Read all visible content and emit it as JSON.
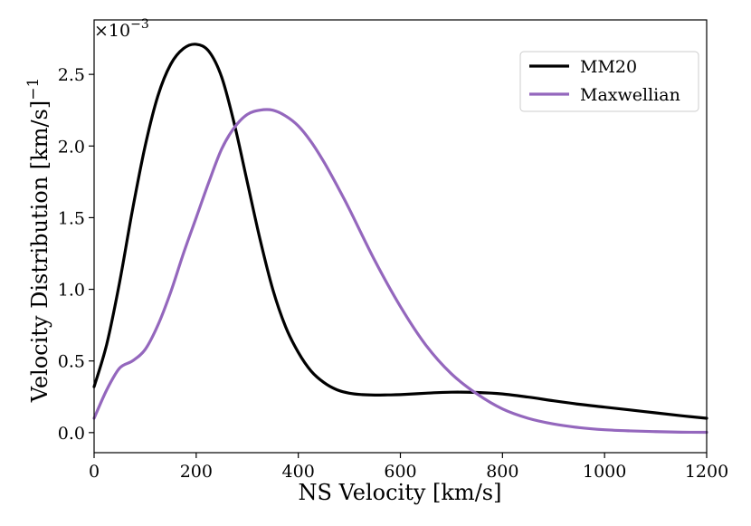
{
  "chart_data": {
    "type": "line",
    "title": "",
    "xlabel": "NS Velocity [km/s]",
    "ylabel": "Velocity Distribution [km/s]",
    "ylabel_exponent": "−1",
    "y_offset_base": "×10",
    "y_offset_exponent": "−3",
    "xlim": [
      0,
      1200
    ],
    "ylim": [
      -0.14,
      2.88
    ],
    "x_ticks": [
      0,
      200,
      400,
      600,
      800,
      1000,
      1200
    ],
    "x_tick_labels": [
      "0",
      "200",
      "400",
      "600",
      "800",
      "1000",
      "1200"
    ],
    "y_ticks": [
      0.0,
      0.5,
      1.0,
      1.5,
      2.0,
      2.5
    ],
    "y_tick_labels": [
      "0.0",
      "0.5",
      "1.0",
      "1.5",
      "2.0",
      "2.5"
    ],
    "grid": false,
    "legend_position": "top-right",
    "series": [
      {
        "name": "MM20",
        "color": "#000000",
        "x": [
          0,
          25,
          50,
          75,
          100,
          125,
          150,
          175,
          200,
          225,
          250,
          275,
          300,
          325,
          350,
          375,
          400,
          425,
          450,
          475,
          500,
          525,
          550,
          575,
          600,
          650,
          700,
          750,
          800,
          850,
          900,
          950,
          1000,
          1050,
          1100,
          1150,
          1200
        ],
        "values": [
          0.32,
          0.62,
          1.05,
          1.55,
          2.0,
          2.35,
          2.57,
          2.68,
          2.71,
          2.66,
          2.48,
          2.15,
          1.75,
          1.35,
          1.0,
          0.74,
          0.56,
          0.43,
          0.35,
          0.3,
          0.275,
          0.265,
          0.262,
          0.263,
          0.265,
          0.275,
          0.282,
          0.28,
          0.27,
          0.248,
          0.222,
          0.198,
          0.178,
          0.158,
          0.138,
          0.118,
          0.1
        ]
      },
      {
        "name": "Maxwellian",
        "color": "#9467bd",
        "x": [
          0,
          25,
          50,
          75,
          100,
          125,
          150,
          175,
          200,
          225,
          250,
          275,
          300,
          325,
          350,
          375,
          400,
          425,
          450,
          475,
          500,
          550,
          600,
          650,
          700,
          750,
          800,
          850,
          900,
          950,
          1000,
          1050,
          1100,
          1150,
          1200
        ],
        "values": [
          0.1,
          0.3,
          0.45,
          0.5,
          0.58,
          0.75,
          0.98,
          1.25,
          1.5,
          1.75,
          1.98,
          2.13,
          2.22,
          2.25,
          2.25,
          2.21,
          2.14,
          2.03,
          1.89,
          1.73,
          1.56,
          1.2,
          0.88,
          0.61,
          0.41,
          0.27,
          0.165,
          0.1,
          0.06,
          0.035,
          0.02,
          0.012,
          0.007,
          0.003,
          0.002
        ]
      }
    ]
  }
}
